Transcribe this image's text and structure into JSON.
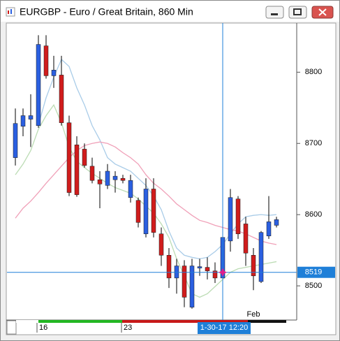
{
  "chart_data": {
    "type": "candlestick",
    "title": "EURGBP - Euro / Great Britain, 860 Min",
    "categories": [
      null,
      null,
      null,
      "16",
      null,
      null,
      null,
      null,
      null,
      null,
      null,
      null,
      null,
      null,
      "23",
      null,
      null,
      null,
      null,
      null,
      null,
      null,
      null,
      null,
      null,
      null,
      null,
      null,
      null,
      null,
      null,
      "Feb",
      null,
      null,
      null
    ],
    "open": [
      8680,
      8724,
      8734,
      8725,
      8837,
      8795,
      8796,
      8729,
      8698,
      8692,
      8668,
      8649,
      8641,
      8649,
      8651,
      8624,
      8620,
      8573,
      8636,
      8573,
      8543,
      8511,
      8528,
      8470,
      8525,
      8526,
      8521,
      8511,
      8563,
      8622,
      8587,
      8543,
      8506,
      8570,
      8585
    ],
    "high": [
      8749,
      8749,
      8769,
      8852,
      8852,
      8823,
      8823,
      8739,
      8710,
      8700,
      8680,
      8661,
      8671,
      8661,
      8656,
      8656,
      8624,
      8651,
      8651,
      8582,
      8553,
      8538,
      8536,
      8538,
      8538,
      8540,
      8533,
      8577,
      8636,
      8626,
      8597,
      8553,
      8577,
      8626,
      8597
    ],
    "low": [
      8669,
      8710,
      8695,
      8722,
      8791,
      8778,
      8725,
      8626,
      8625,
      8666,
      8644,
      8609,
      8636,
      8631,
      8644,
      8617,
      8582,
      8568,
      8568,
      8528,
      8497,
      8489,
      8470,
      8468,
      8514,
      8509,
      8504,
      8489,
      8548,
      8566,
      8528,
      8494,
      8504,
      8566,
      8582
    ],
    "close": [
      8728,
      8739,
      8739,
      8839,
      8795,
      8803,
      8729,
      8631,
      8628,
      8669,
      8648,
      8643,
      8661,
      8654,
      8648,
      8648,
      8589,
      8636,
      8575,
      8543,
      8511,
      8528,
      8484,
      8528,
      8527,
      8521,
      8511,
      8568,
      8624,
      8573,
      8546,
      8514,
      8575,
      8590,
      8593
    ],
    "up_color": "#2b5fe0",
    "down_color": "#d01c1c",
    "series": [
      {
        "color": "#a9cce8",
        "values": [
          null,
          null,
          null,
          8726,
          8764,
          8793,
          8818,
          8808,
          8778,
          8754,
          8725,
          8705,
          8680,
          8671,
          8666,
          8661,
          8651,
          8641,
          8626,
          8607,
          8577,
          8553,
          8543,
          8540,
          8538,
          8540,
          8548,
          8558,
          8573,
          8587,
          8597,
          8599,
          8600,
          8599,
          8600
        ]
      },
      {
        "color": "#bcdcb4",
        "values": [
          8656,
          8671,
          8690,
          8720,
          8739,
          8754,
          8729,
          8695,
          8675,
          8666,
          8658,
          8651,
          8644,
          8638,
          8634,
          8630,
          8622,
          8612,
          8602,
          8587,
          8568,
          8538,
          8514,
          8489,
          8484,
          8489,
          8499,
          8509,
          8519,
          8524,
          8526,
          8528,
          8530,
          8532,
          8534
        ]
      },
      {
        "color": "#f0a0b8",
        "values": [
          8595,
          8609,
          8619,
          8631,
          8644,
          8656,
          8668,
          8680,
          8690,
          8697,
          8700,
          8702,
          8700,
          8695,
          8687,
          8680,
          8671,
          8656,
          8644,
          8636,
          8626,
          8615,
          8607,
          8599,
          8592,
          8589,
          8585,
          8582,
          8579,
          8577,
          8573,
          8568,
          8563,
          8560,
          8558
        ]
      }
    ],
    "ylim": [
      8452,
      8869
    ],
    "yticks": [
      8500,
      8600,
      8700,
      8800
    ],
    "crosshair": {
      "x_label": "1-30-17 12:20",
      "y": 8519
    }
  }
}
